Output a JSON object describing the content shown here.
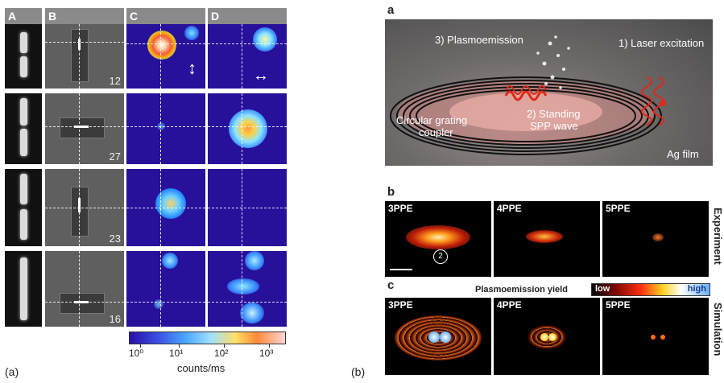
{
  "figure_a": {
    "headers": [
      "A",
      "B",
      "C",
      "D"
    ],
    "row_numbers": [
      "12",
      "27",
      "23",
      "16"
    ],
    "colorbar": {
      "ticks": [
        "10⁰",
        "10¹",
        "10²",
        "10³"
      ],
      "label": "counts/ms"
    },
    "caption": "(a)"
  },
  "figure_b": {
    "panel_a": {
      "tag": "a",
      "labels": {
        "plasmoemission": "3) Plasmoemission",
        "laser": "1) Laser excitation",
        "standing_line1": "2) Standing",
        "standing_line2": "SPP wave",
        "coupler_line1": "Circular grating",
        "coupler_line2": "coupler",
        "film": "Ag film"
      }
    },
    "panel_b": {
      "tag": "b",
      "subpanels": [
        "3PPE",
        "4PPE",
        "5PPE"
      ],
      "side_label": "Experiment",
      "marker": "2"
    },
    "panel_c": {
      "tag": "c",
      "subpanels": [
        "3PPE",
        "4PPE",
        "5PPE"
      ],
      "side_label": "Simulation",
      "yield_label": "Plasmoemission yield",
      "low": "low",
      "high": "high"
    },
    "caption": "(b)"
  }
}
